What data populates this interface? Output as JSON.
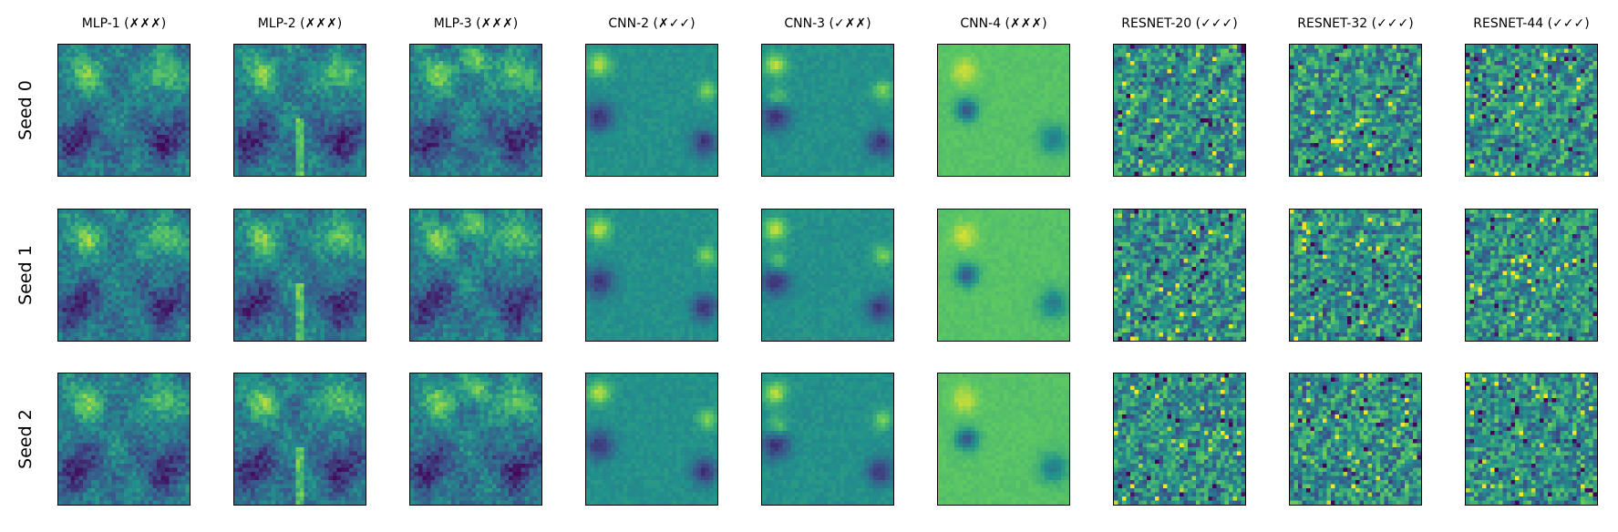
{
  "figure": {
    "columns": [
      {
        "label": "MLP-1 (✗✗✗)",
        "kind": "mlp1"
      },
      {
        "label": "MLP-2 (✗✗✗)",
        "kind": "mlp2"
      },
      {
        "label": "MLP-3 (✗✗✗)",
        "kind": "mlp3"
      },
      {
        "label": "CNN-2 (✗✓✓)",
        "kind": "cnn2"
      },
      {
        "label": "CNN-3 (✓✗✗)",
        "kind": "cnn3"
      },
      {
        "label": "CNN-4 (✗✗✗)",
        "kind": "cnn4"
      },
      {
        "label": "RESNET-20 (✓✓✓)",
        "kind": "resnet"
      },
      {
        "label": "RESNET-32 (✓✓✓)",
        "kind": "resnet"
      },
      {
        "label": "RESNET-44 (✓✓✓)",
        "kind": "resnet"
      }
    ],
    "rows": [
      {
        "label": "Seed 0"
      },
      {
        "label": "Seed 1"
      },
      {
        "label": "Seed 2"
      }
    ],
    "colormap": "viridis",
    "colormap_stops": [
      "#440154",
      "#3b528b",
      "#21918c",
      "#5ec962",
      "#fde725"
    ]
  }
}
